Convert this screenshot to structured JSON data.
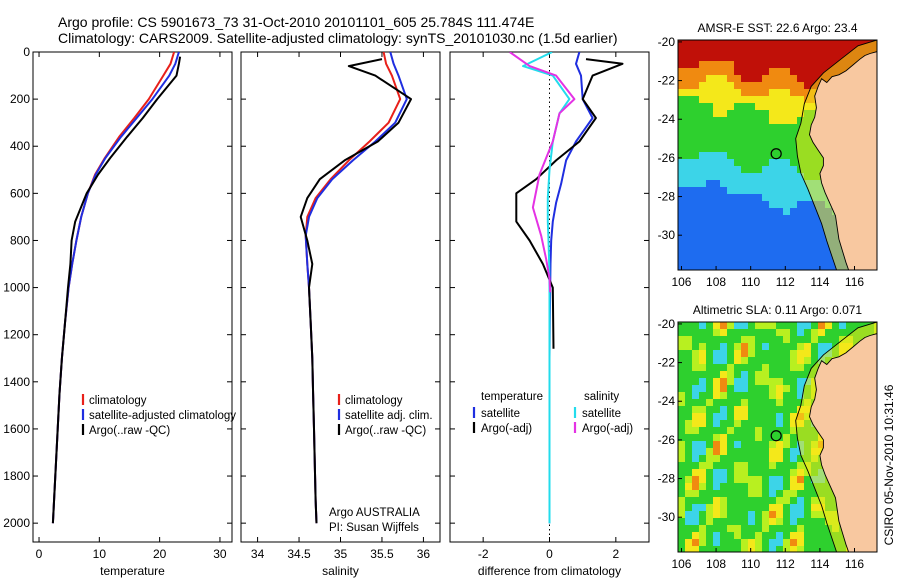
{
  "figure": {
    "title_line1": "Argo profile: CS 5901673_73 31-Oct-2010 20101101_605 25.784S 111.474E",
    "title_line2": "Climatology: CARS2009. Satellite-adjusted climatology: synTS_20101030.nc (1.5d earlier)",
    "side_stamp": "CSIRO 05-Nov-2010 10:31:46"
  },
  "chart_data": [
    {
      "type": "line",
      "id": "temperature",
      "xlabel": "temperature",
      "xlim": [
        -1,
        32
      ],
      "ylim": [
        2080,
        0
      ],
      "xticks": [
        0,
        10,
        20,
        30
      ],
      "yticks": [
        0,
        200,
        400,
        600,
        800,
        1000,
        1200,
        1400,
        1600,
        1800,
        2000
      ],
      "colors": {
        "climatology": "#e8201a",
        "satellite": "#1f2ee0",
        "argo": "#000000"
      },
      "legend": [
        "climatology",
        "satellite-adjusted climatology",
        "Argo(..raw -QC)"
      ],
      "series": [
        {
          "name": "climatology",
          "key": "climatology",
          "x": [
            22.4,
            21.8,
            20.6,
            18.2,
            15.8,
            13.3,
            10.9,
            9.3,
            8.1,
            7.0,
            6.2,
            5.5,
            4.9,
            4.3,
            3.8,
            3.4,
            3.1,
            2.8,
            2.5,
            2.3
          ],
          "y": [
            0,
            50,
            100,
            200,
            280,
            360,
            450,
            520,
            600,
            700,
            800,
            900,
            1000,
            1150,
            1300,
            1450,
            1600,
            1750,
            1900,
            2000
          ]
        },
        {
          "name": "satellite-adjusted climatology",
          "key": "satellite",
          "x": [
            23.2,
            22.6,
            21.6,
            18.8,
            16.2,
            13.6,
            11.0,
            9.4,
            8.1,
            7.0,
            6.2,
            5.5,
            4.9,
            4.3,
            3.8,
            3.4,
            3.1,
            2.8,
            2.5,
            2.3
          ],
          "y": [
            0,
            50,
            100,
            200,
            280,
            360,
            450,
            520,
            600,
            700,
            800,
            900,
            1000,
            1150,
            1300,
            1450,
            1600,
            1750,
            1900,
            2000
          ]
        },
        {
          "name": "Argo(..raw -QC)",
          "key": "argo",
          "x": [
            23.4,
            23.2,
            22.8,
            19.6,
            17.2,
            14.6,
            11.8,
            9.8,
            7.9,
            6.0,
            5.4,
            5.2,
            4.8,
            4.3,
            3.8,
            3.4,
            3.1,
            2.8,
            2.5,
            2.3
          ],
          "y": [
            20,
            50,
            100,
            200,
            280,
            360,
            450,
            520,
            600,
            720,
            800,
            900,
            1000,
            1150,
            1300,
            1450,
            1600,
            1750,
            1900,
            2000
          ]
        }
      ]
    },
    {
      "type": "line",
      "id": "salinity",
      "xlabel": "salinity",
      "xlim": [
        33.8,
        36.2
      ],
      "ylim": [
        2080,
        0
      ],
      "xticks": [
        34,
        34.5,
        35,
        35.5,
        36
      ],
      "colors": {
        "climatology": "#e8201a",
        "satellite": "#1f2ee0",
        "argo": "#000000"
      },
      "legend": [
        "climatology",
        "satellite adj. clim.",
        "Argo(..raw -QC)"
      ],
      "annotation": [
        "Argo AUSTRALIA",
        "PI: Susan Wijffels"
      ],
      "series": [
        {
          "name": "climatology",
          "key": "climatology",
          "x": [
            35.52,
            35.55,
            35.62,
            35.72,
            35.58,
            35.35,
            35.1,
            34.88,
            34.7,
            34.6,
            34.58,
            34.6,
            34.62,
            34.64,
            34.66,
            34.67,
            34.68,
            34.69,
            34.7,
            34.71
          ],
          "y": [
            0,
            50,
            100,
            200,
            300,
            380,
            460,
            540,
            620,
            700,
            780,
            900,
            1000,
            1150,
            1300,
            1450,
            1600,
            1750,
            1900,
            2000
          ]
        },
        {
          "name": "satellite adj. clim.",
          "key": "satellite",
          "x": [
            35.6,
            35.64,
            35.7,
            35.8,
            35.66,
            35.42,
            35.15,
            34.9,
            34.72,
            34.62,
            34.58,
            34.6,
            34.62,
            34.64,
            34.66,
            34.67,
            34.68,
            34.69,
            34.7,
            34.71
          ],
          "y": [
            0,
            50,
            100,
            200,
            300,
            380,
            460,
            540,
            620,
            700,
            780,
            900,
            1000,
            1150,
            1300,
            1450,
            1600,
            1750,
            1900,
            2000
          ]
        },
        {
          "name": "Argo(..raw -QC)",
          "key": "argo",
          "x": [
            35.5,
            35.1,
            35.42,
            35.85,
            35.7,
            35.45,
            35.05,
            34.75,
            34.6,
            34.52,
            34.6,
            34.66,
            34.62,
            34.64,
            34.66,
            34.67,
            34.68,
            34.69,
            34.7,
            34.71
          ],
          "y": [
            30,
            60,
            100,
            200,
            300,
            380,
            460,
            540,
            620,
            700,
            800,
            900,
            1000,
            1150,
            1300,
            1450,
            1600,
            1750,
            1900,
            2000
          ]
        }
      ]
    },
    {
      "type": "line",
      "id": "difference",
      "xlabel": "difference from climatology",
      "xlim": [
        -3,
        3
      ],
      "ylim": [
        2080,
        0
      ],
      "xticks": [
        -2,
        0,
        2
      ],
      "zero_line": 0,
      "colors": {
        "temp_satellite": "#1f2ee0",
        "temp_argo": "#000000",
        "sal_satellite": "#22dcec",
        "sal_argo": "#e432e4"
      },
      "legend": {
        "temperature_heading": "temperature",
        "salinity_heading": "salinity",
        "temperature_entries": [
          "satellite",
          "Argo(-adj)"
        ],
        "salinity_entries": [
          "satellite",
          "Argo(-adj)"
        ]
      },
      "series": [
        {
          "name": "temperature satellite",
          "key": "temp_satellite",
          "x": [
            0.9,
            0.8,
            0.95,
            1.0,
            1.3,
            0.8,
            0.5,
            0.35,
            0.2,
            0.1,
            0.05,
            0.03,
            0.02,
            0.01,
            0.0,
            0.0,
            0.0,
            0.0
          ],
          "y": [
            0,
            50,
            100,
            200,
            280,
            380,
            460,
            560,
            640,
            720,
            800,
            900,
            1000,
            1150,
            1300,
            1500,
            1800,
            2000
          ]
        },
        {
          "name": "temperature Argo(-adj)",
          "key": "temp_argo",
          "x": [
            1.1,
            2.2,
            1.3,
            1.0,
            1.4,
            0.9,
            0.2,
            -0.4,
            -1.0,
            -1.0,
            -0.6,
            -0.2,
            0.1,
            0.12
          ],
          "y": [
            30,
            50,
            100,
            200,
            280,
            380,
            460,
            540,
            600,
            720,
            800,
            900,
            1000,
            1260
          ]
        },
        {
          "name": "salinity satellite",
          "key": "sal_satellite",
          "x": [
            0.08,
            -0.8,
            0.1,
            0.6,
            0.3,
            0.1,
            0.0,
            -0.05,
            -0.05,
            -0.03,
            -0.01,
            0.0,
            0.0,
            0.0,
            0.0
          ],
          "y": [
            0,
            60,
            100,
            200,
            260,
            380,
            500,
            620,
            720,
            800,
            900,
            1000,
            1300,
            1600,
            2000
          ]
        },
        {
          "name": "salinity Argo(-adj)",
          "key": "sal_argo",
          "x": [
            -1.2,
            -0.6,
            0.2,
            0.75,
            0.3,
            0.1,
            -0.3,
            -0.5,
            -0.25,
            -0.1,
            0.0,
            0.02
          ],
          "y": [
            0,
            60,
            100,
            200,
            260,
            380,
            520,
            660,
            780,
            880,
            960,
            1020
          ]
        }
      ]
    },
    {
      "type": "heatmap",
      "id": "sst_map",
      "title": "AMSR-E SST: 22.6  Argo: 23.4",
      "xlim": [
        105.8,
        117.3
      ],
      "ylim": [
        -31.8,
        -19.9
      ],
      "xticks": [
        106,
        108,
        110,
        112,
        114,
        116
      ],
      "yticks": [
        -20,
        -22,
        -24,
        -26,
        -28,
        -30
      ],
      "marker": {
        "lon": 111.474,
        "lat": -25.784
      },
      "palette": {
        "cold": "#1e6cf0",
        "cyan": "#3cd4e8",
        "green": "#2ed02e",
        "yellow": "#f4e81a",
        "orange": "#f08a10",
        "red": "#c01008",
        "land": "#f8c8a0"
      }
    },
    {
      "type": "heatmap",
      "id": "sla_map",
      "title": "Altimetric SLA: 0.11  Argo: 0.071",
      "xlim": [
        105.8,
        117.3
      ],
      "ylim": [
        -31.8,
        -19.9
      ],
      "xticks": [
        106,
        108,
        110,
        112,
        114,
        116
      ],
      "yticks": [
        -20,
        -22,
        -24,
        -26,
        -28,
        -30
      ],
      "marker": {
        "lon": 111.474,
        "lat": -25.784
      },
      "palette": {
        "cyan": "#3cd4e8",
        "green": "#2ed02e",
        "lime": "#b8f020",
        "yellow": "#f4e81a",
        "orange": "#f08a10",
        "land": "#f8c8a0"
      }
    }
  ]
}
